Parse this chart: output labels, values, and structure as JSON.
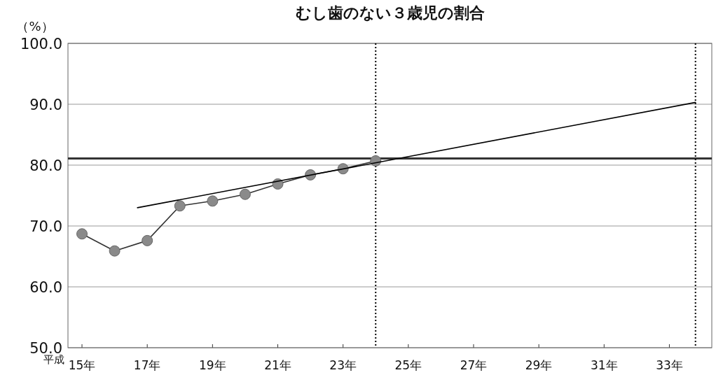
{
  "chart_data": {
    "type": "line",
    "title": "むし歯のない３歳児の割合",
    "ylabel": "（%）",
    "annotations": [
      "平成"
    ],
    "x": [
      15,
      16,
      17,
      18,
      19,
      20,
      21,
      22,
      23,
      24
    ],
    "series": [
      {
        "color": "#8a8a8a",
        "marker": "circle",
        "values": [
          68.7,
          65.9,
          67.6,
          73.3,
          74.1,
          75.2,
          76.9,
          78.4,
          79.4,
          80.7
        ]
      },
      {
        "type": "line",
        "marker": "none",
        "color": "#000000",
        "x": [
          16.7,
          33.8
        ],
        "values": [
          73.0,
          90.3
        ]
      }
    ],
    "xlim": [
      14.57,
      34.3
    ],
    "ylim": [
      50,
      100
    ],
    "xticks": [
      {
        "value": 15,
        "label": "15年"
      },
      {
        "value": 17,
        "label": "17年"
      },
      {
        "value": 19,
        "label": "19年"
      },
      {
        "value": 21,
        "label": "21年"
      },
      {
        "value": 23,
        "label": "23年"
      },
      {
        "value": 25,
        "label": "25年"
      },
      {
        "value": 27,
        "label": "27年"
      },
      {
        "value": 29,
        "label": "29年"
      },
      {
        "value": 31,
        "label": "31年"
      },
      {
        "value": 33,
        "label": "33年"
      }
    ],
    "yticks": [
      {
        "value": 50,
        "label": "50.0"
      },
      {
        "value": 60,
        "label": "60.0"
      },
      {
        "value": 70,
        "label": "70.0"
      },
      {
        "value": 80,
        "label": "80.0"
      },
      {
        "value": 90,
        "label": "90.0"
      },
      {
        "value": 100,
        "label": "100.0"
      }
    ],
    "grid": "y",
    "ref_lines": [
      {
        "axis": "y",
        "value": 81.1,
        "color": "#333333",
        "line_style": "solid"
      },
      {
        "axis": "x",
        "value": 24,
        "color": "#000000",
        "line_style": "dotted"
      },
      {
        "axis": "x",
        "value": 33.8,
        "color": "#000000",
        "line_style": "dotted"
      }
    ]
  }
}
